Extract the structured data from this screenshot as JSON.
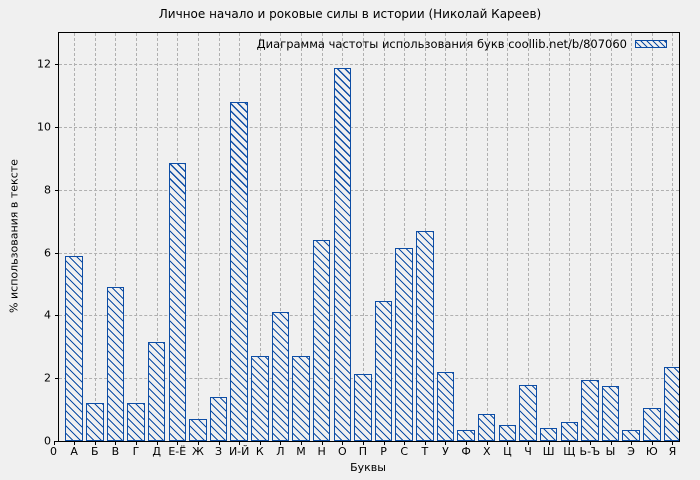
{
  "figure": {
    "title": "Личное начало и роковые силы в истории (Николай Кареев)"
  },
  "legend": {
    "label": "Диаграмма частоты использования букв coollib.net/b/807060",
    "swatch": "hatched-blue-box"
  },
  "colors": {
    "bar": "#0d4da5",
    "grid": "#b0b0b0",
    "axis": "#000000",
    "background": "#f0f0f0"
  },
  "chart_data": {
    "type": "bar",
    "title": "Личное начало и роковые силы в истории (Николай Кареев)",
    "legend_label": "Диаграмма частоты использования букв coollib.net/b/807060",
    "categories": [
      "А",
      "Б",
      "В",
      "Г",
      "Д",
      "Е-Ё",
      "Ж",
      "З",
      "И-Й",
      "К",
      "Л",
      "М",
      "Н",
      "О",
      "П",
      "Р",
      "С",
      "Т",
      "У",
      "Ф",
      "Х",
      "Ц",
      "Ч",
      "Ш",
      "Щ",
      "Ь-Ъ",
      "Ы",
      "Э",
      "Ю",
      "Я"
    ],
    "values": [
      5.9,
      1.2,
      4.9,
      1.2,
      3.15,
      8.85,
      0.7,
      1.4,
      10.8,
      2.7,
      4.1,
      2.7,
      6.4,
      11.9,
      2.15,
      4.45,
      6.15,
      6.7,
      2.2,
      0.35,
      0.85,
      0.5,
      1.8,
      0.4,
      0.6,
      1.95,
      1.75,
      0.35,
      1.05,
      2.35
    ],
    "xlabel": "Буквы",
    "ylabel": "% использования в тексте",
    "origin_label": "0",
    "yticks": [
      0,
      2,
      4,
      6,
      8,
      10,
      12
    ],
    "ylim": [
      0,
      13
    ],
    "grid": true,
    "hatch": "diagonal",
    "legend_position": "top-right-inside"
  }
}
